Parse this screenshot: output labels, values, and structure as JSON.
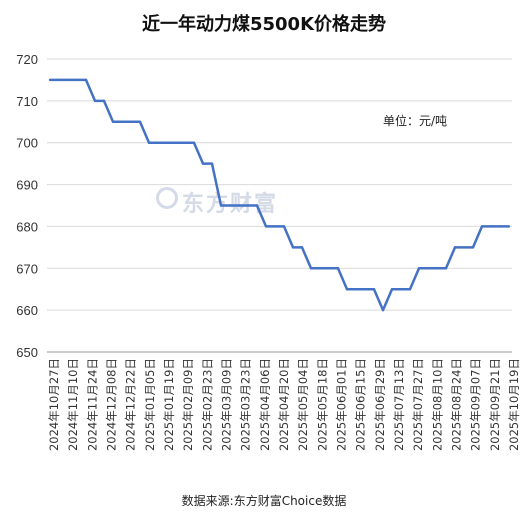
{
  "chart_data": {
    "type": "line",
    "title": "近一年动力煤5500K价格走势",
    "unit_note": "单位：元/吨",
    "source": "数据来源:东方财富Choice数据",
    "watermark": "东方财富",
    "ylim": [
      650,
      720
    ],
    "yticks": [
      650,
      660,
      670,
      680,
      690,
      700,
      710,
      720
    ],
    "xtick_labels": [
      "2024年10月27日",
      "2024年11月10日",
      "2024年11月24日",
      "2024年12月08日",
      "2024年12月22日",
      "2025年01月05日",
      "2025年01月19日",
      "2025年02月09日",
      "2025年02月23日",
      "2025年03月09日",
      "2025年03月23日",
      "2025年04月06日",
      "2025年04月20日",
      "2025年05月04日",
      "2025年05月18日",
      "2025年06月01日",
      "2025年06月15日",
      "2025年06月29日",
      "2025年07月13日",
      "2025年07月27日",
      "2025年08月10日",
      "2025年08月24日",
      "2025年09月07日",
      "2025年09月21日",
      "2025年10月19日"
    ],
    "line_color": "#4472c4",
    "x": [
      "2024-10-27",
      "2024-11-03",
      "2024-11-10",
      "2024-11-17",
      "2024-11-24",
      "2024-12-01",
      "2024-12-08",
      "2024-12-15",
      "2024-12-22",
      "2024-12-29",
      "2025-01-05",
      "2025-01-12",
      "2025-01-19",
      "2025-01-26",
      "2025-02-02",
      "2025-02-09",
      "2025-02-16",
      "2025-02-23",
      "2025-03-02",
      "2025-03-09",
      "2025-03-16",
      "2025-03-23",
      "2025-03-30",
      "2025-04-06",
      "2025-04-13",
      "2025-04-20",
      "2025-04-27",
      "2025-05-04",
      "2025-05-11",
      "2025-05-18",
      "2025-05-25",
      "2025-06-01",
      "2025-06-08",
      "2025-06-15",
      "2025-06-22",
      "2025-06-29",
      "2025-07-06",
      "2025-07-13",
      "2025-07-20",
      "2025-07-27",
      "2025-08-03",
      "2025-08-10",
      "2025-08-17",
      "2025-08-24",
      "2025-08-31",
      "2025-09-07",
      "2025-09-14",
      "2025-09-21",
      "2025-09-28",
      "2025-10-05",
      "2025-10-12",
      "2025-10-19"
    ],
    "values": [
      715,
      715,
      715,
      715,
      715,
      710,
      710,
      705,
      705,
      705,
      705,
      700,
      700,
      700,
      700,
      700,
      700,
      695,
      695,
      685,
      685,
      685,
      685,
      685,
      680,
      680,
      680,
      675,
      675,
      670,
      670,
      670,
      670,
      665,
      665,
      665,
      665,
      660,
      665,
      665,
      665,
      670,
      670,
      670,
      670,
      675,
      675,
      675,
      680,
      680,
      680,
      680
    ]
  }
}
